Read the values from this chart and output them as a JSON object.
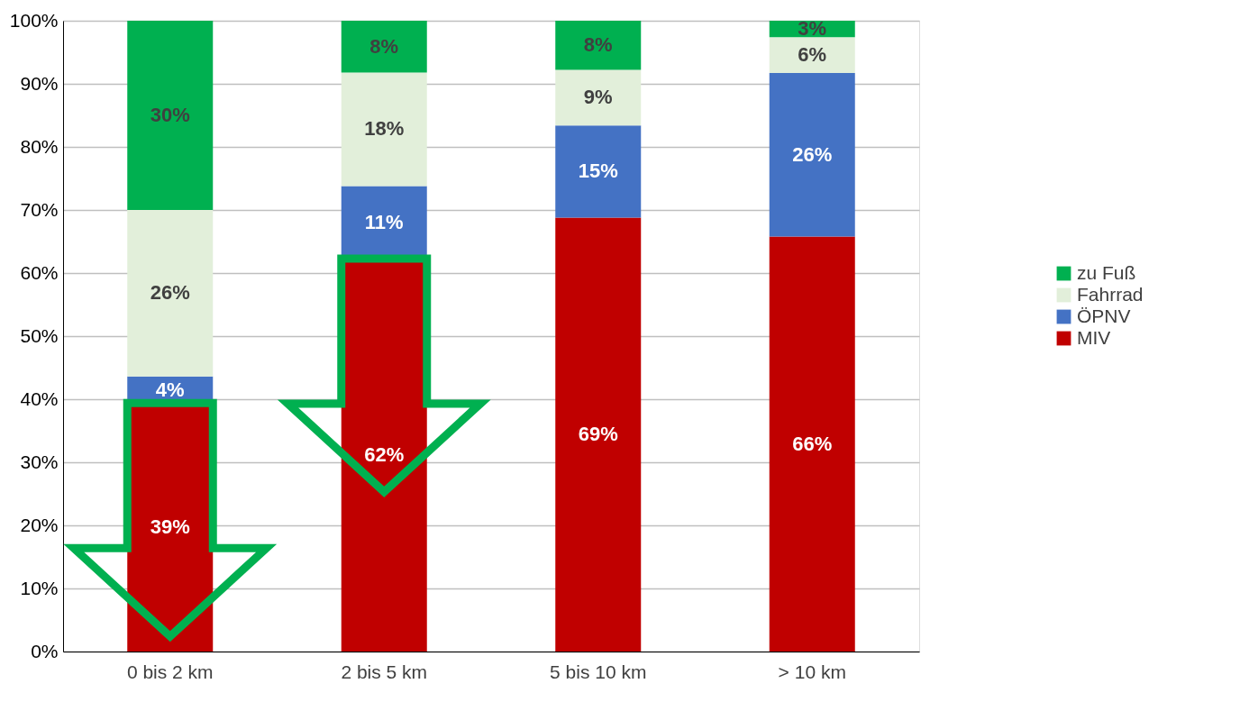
{
  "chart_data": {
    "type": "bar",
    "stacked": true,
    "categories": [
      "0 bis 2 km",
      "2 bis 5 km",
      "5 bis 10 km",
      "> 10 km"
    ],
    "series": [
      {
        "name": "MIV",
        "color": "#c00000",
        "values": [
          39.4,
          62.3,
          68.8,
          65.8
        ],
        "value_labels": [
          "39%",
          "62%",
          "69%",
          "66%"
        ]
      },
      {
        "name": "ÖPNV",
        "color": "#4472c4",
        "values": [
          4.2,
          11.5,
          14.6,
          25.9
        ],
        "value_labels": [
          "4%",
          "11%",
          "15%",
          "26%"
        ]
      },
      {
        "name": "Fahrrad",
        "color": "#e2efda",
        "values": [
          26.4,
          18.0,
          8.8,
          5.7
        ],
        "value_labels": [
          "26%",
          "18%",
          "9%",
          "6%"
        ]
      },
      {
        "name": "zu Fuß",
        "color": "#00b050",
        "values": [
          30.0,
          8.2,
          7.8,
          2.6
        ],
        "value_labels": [
          "30%",
          "8%",
          "8%",
          "3%"
        ]
      }
    ],
    "ylim": [
      0,
      100
    ],
    "yticks": [
      {
        "value": 0,
        "label": "0%"
      },
      {
        "value": 10,
        "label": "10%"
      },
      {
        "value": 20,
        "label": "20%"
      },
      {
        "value": 30,
        "label": "30%"
      },
      {
        "value": 40,
        "label": "40%"
      },
      {
        "value": 50,
        "label": "50%"
      },
      {
        "value": 60,
        "label": "60%"
      },
      {
        "value": 70,
        "label": "70%"
      },
      {
        "value": 80,
        "label": "80%"
      },
      {
        "value": 90,
        "label": "90%"
      },
      {
        "value": 100,
        "label": "100%"
      }
    ],
    "grid": "y",
    "legend": "right"
  }
}
